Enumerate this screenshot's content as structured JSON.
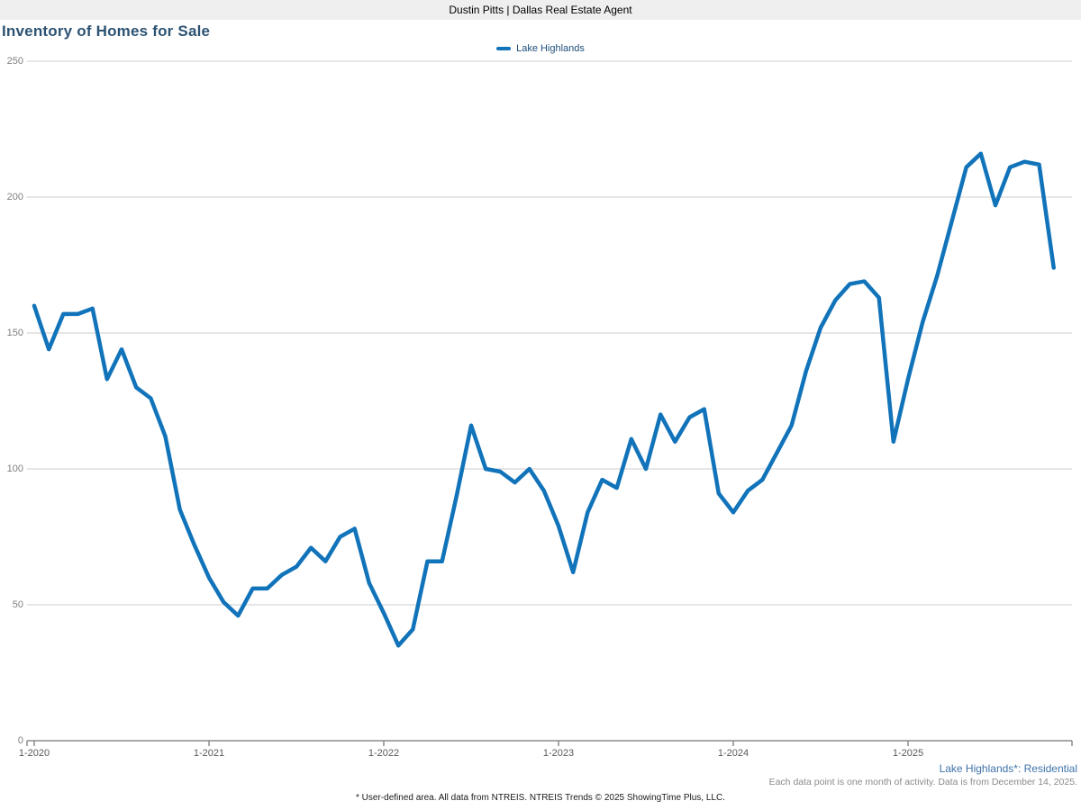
{
  "header": {
    "title": "Dustin Pitts | Dallas Real Estate Agent"
  },
  "chart": {
    "title": "Inventory of Homes for Sale",
    "legend": {
      "label": "Lake Highlands",
      "color": "#1173b9"
    }
  },
  "chart_data": {
    "type": "line",
    "title": "Inventory of Homes for Sale",
    "ylabel": "",
    "xlabel": "",
    "ylim": [
      0,
      250
    ],
    "y_ticks": [
      0,
      50,
      100,
      150,
      200,
      250
    ],
    "x_tick_labels": [
      "1-2020",
      "1-2021",
      "1-2022",
      "1-2023",
      "1-2024",
      "1-2025"
    ],
    "x_tick_month_index": [
      0,
      12,
      24,
      36,
      48,
      60
    ],
    "grid": "horizontal",
    "legend_position": "top-center",
    "series": [
      {
        "name": "Lake Highlands",
        "color": "#1173b9",
        "months": [
          "1-2020",
          "2-2020",
          "3-2020",
          "4-2020",
          "5-2020",
          "6-2020",
          "7-2020",
          "8-2020",
          "9-2020",
          "10-2020",
          "11-2020",
          "12-2020",
          "1-2021",
          "2-2021",
          "3-2021",
          "4-2021",
          "5-2021",
          "6-2021",
          "7-2021",
          "8-2021",
          "9-2021",
          "10-2021",
          "11-2021",
          "12-2021",
          "1-2022",
          "2-2022",
          "3-2022",
          "4-2022",
          "5-2022",
          "6-2022",
          "7-2022",
          "8-2022",
          "9-2022",
          "10-2022",
          "11-2022",
          "12-2022",
          "1-2023",
          "2-2023",
          "3-2023",
          "4-2023",
          "5-2023",
          "6-2023",
          "7-2023",
          "8-2023",
          "9-2023",
          "10-2023",
          "11-2023",
          "12-2023",
          "1-2024",
          "2-2024",
          "3-2024",
          "4-2024",
          "5-2024",
          "6-2024",
          "7-2024",
          "8-2024",
          "9-2024",
          "10-2024",
          "11-2024",
          "12-2024",
          "1-2025",
          "2-2025",
          "3-2025",
          "4-2025",
          "5-2025",
          "6-2025",
          "7-2025",
          "8-2025",
          "9-2025",
          "10-2025",
          "11-2025"
        ],
        "values": [
          160,
          144,
          157,
          157,
          159,
          133,
          144,
          130,
          126,
          112,
          85,
          72,
          60,
          51,
          46,
          56,
          56,
          61,
          64,
          71,
          66,
          75,
          78,
          58,
          47,
          35,
          41,
          66,
          66,
          90,
          116,
          100,
          99,
          95,
          100,
          92,
          79,
          62,
          84,
          96,
          93,
          111,
          100,
          120,
          110,
          119,
          122,
          91,
          84,
          92,
          96,
          106,
          116,
          136,
          152,
          162,
          168,
          169,
          163,
          110,
          133,
          154,
          171,
          191,
          211,
          216,
          197,
          211,
          213,
          212,
          174
        ]
      }
    ]
  },
  "footer": {
    "series_note": "Lake Highlands*: Residential",
    "data_note": "Each data point is one month of activity. Data is from December 14, 2025.",
    "attribution": "* User-defined area. All data from NTREIS. NTREIS Trends © 2025 ShowingTime Plus, LLC."
  }
}
